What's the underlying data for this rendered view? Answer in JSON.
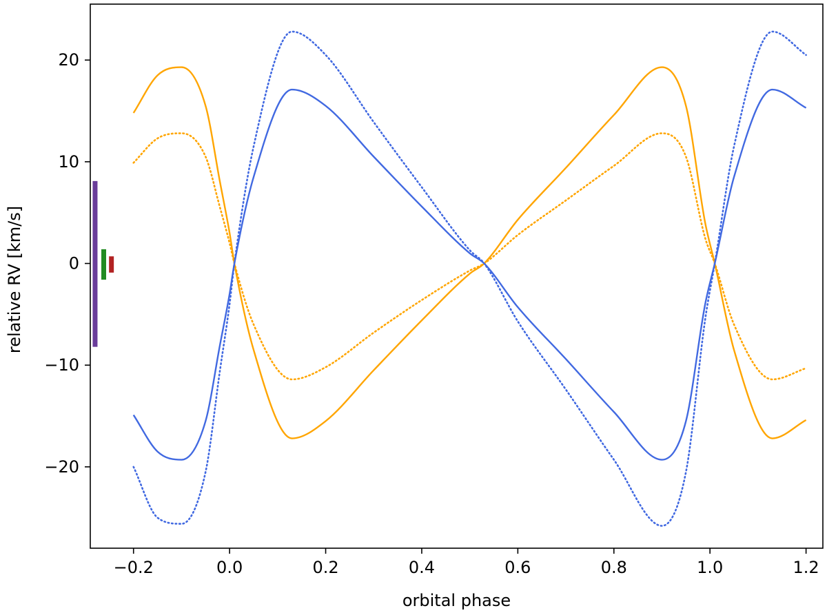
{
  "chart_data": {
    "type": "line",
    "title": "",
    "xlabel": "orbital phase",
    "ylabel": "relative RV [km/s]",
    "xlim": [
      -0.29,
      1.235
    ],
    "ylim": [
      -28,
      25.5
    ],
    "x_ticks": [
      -0.2,
      0.0,
      0.2,
      0.4,
      0.6,
      0.8,
      1.0,
      1.2
    ],
    "x_tick_labels": [
      "−0.2",
      "0.0",
      "0.2",
      "0.4",
      "0.6",
      "0.8",
      "1.0",
      "1.2"
    ],
    "y_ticks": [
      -20,
      -10,
      0,
      10,
      20
    ],
    "y_tick_labels": [
      "−20",
      "−10",
      "0",
      "10",
      "20"
    ],
    "grid": false,
    "legend": "none",
    "series": [
      {
        "color": "#ffa500",
        "style": "solid",
        "x": [
          -0.2,
          -0.15,
          -0.1,
          -0.05,
          -0.02,
          0.0,
          0.01,
          0.05,
          0.13,
          0.2,
          0.3,
          0.4,
          0.5,
          0.53,
          0.6,
          0.7,
          0.8,
          0.9,
          0.95,
          0.99,
          1.01,
          1.05,
          1.13,
          1.2
        ],
        "y": [
          14.8,
          18.5,
          19.3,
          15.5,
          8.0,
          3.0,
          0.0,
          -8.5,
          -17.2,
          -15.5,
          -10.5,
          -5.6,
          -1.0,
          0.0,
          4.3,
          9.4,
          14.6,
          19.3,
          15.5,
          4.0,
          0.0,
          -8.5,
          -17.2,
          -15.4
        ]
      },
      {
        "color": "#ffa500",
        "style": "dotted",
        "x": [
          -0.2,
          -0.15,
          -0.1,
          -0.05,
          -0.02,
          0.0,
          0.01,
          0.05,
          0.13,
          0.2,
          0.3,
          0.4,
          0.5,
          0.53,
          0.6,
          0.7,
          0.8,
          0.9,
          0.95,
          0.99,
          1.01,
          1.05,
          1.13,
          1.2
        ],
        "y": [
          9.9,
          12.3,
          12.8,
          10.5,
          5.5,
          2.0,
          0.0,
          -6.0,
          -11.4,
          -10.2,
          -6.8,
          -3.6,
          -0.7,
          0.0,
          2.8,
          6.2,
          9.6,
          12.8,
          10.5,
          2.5,
          0.0,
          -6.0,
          -11.4,
          -10.3
        ]
      },
      {
        "color": "#4169e1",
        "style": "solid",
        "x": [
          -0.2,
          -0.15,
          -0.1,
          -0.05,
          -0.02,
          0.0,
          0.01,
          0.05,
          0.13,
          0.2,
          0.3,
          0.4,
          0.5,
          0.53,
          0.6,
          0.7,
          0.8,
          0.9,
          0.95,
          0.99,
          1.01,
          1.05,
          1.13,
          1.2
        ],
        "y": [
          -14.9,
          -18.5,
          -19.3,
          -15.5,
          -8.0,
          -3.0,
          0.0,
          8.5,
          17.1,
          15.5,
          10.5,
          5.6,
          1.0,
          0.0,
          -4.3,
          -9.4,
          -14.6,
          -19.3,
          -15.5,
          -4.0,
          0.0,
          8.5,
          17.1,
          15.3
        ]
      },
      {
        "color": "#4169e1",
        "style": "dotted",
        "x": [
          -0.2,
          -0.15,
          -0.1,
          -0.05,
          -0.02,
          0.0,
          0.01,
          0.05,
          0.13,
          0.2,
          0.3,
          0.4,
          0.5,
          0.53,
          0.6,
          0.7,
          0.8,
          0.9,
          0.95,
          0.99,
          1.01,
          1.05,
          1.13,
          1.2
        ],
        "y": [
          -20.0,
          -25.0,
          -25.6,
          -20.5,
          -10.5,
          -4.0,
          0.0,
          11.5,
          22.8,
          20.5,
          13.9,
          7.5,
          1.3,
          0.0,
          -5.7,
          -12.4,
          -19.3,
          -25.8,
          -20.5,
          -5.5,
          0.0,
          11.5,
          22.8,
          20.5
        ]
      }
    ],
    "error_bars": [
      {
        "x": -0.28,
        "y_low": -8.2,
        "y_high": 8.1,
        "color": "#6a3d9a"
      },
      {
        "x": -0.262,
        "y_low": -1.6,
        "y_high": 1.4,
        "color": "#228b22"
      },
      {
        "x": -0.246,
        "y_low": -0.9,
        "y_high": 0.7,
        "color": "#b22222"
      }
    ]
  }
}
